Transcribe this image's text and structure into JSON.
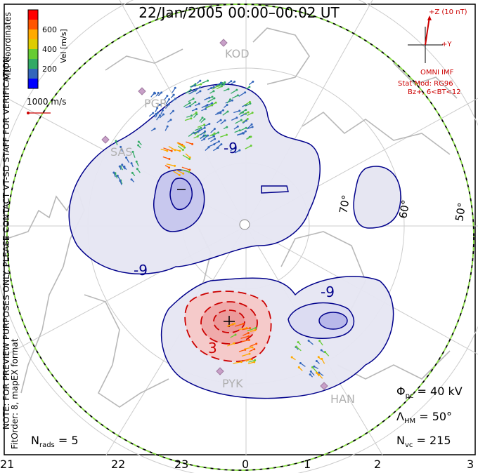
{
  "title": "22/Jan/2005 00:00–00:02 UT",
  "colorbar": {
    "axis_label": "Vel [m/s]",
    "tick_labels": [
      "600",
      "400",
      "200"
    ],
    "colors": [
      "#ff0000",
      "#ff5500",
      "#ffaa00",
      "#ddcc00",
      "#66cc33",
      "#33aa66",
      "#3366bb",
      "#0000ff"
    ]
  },
  "coordinate_note": "MLT coordinates",
  "velocity_scale_label": "1000 m/s",
  "mlt_labels": [
    "21",
    "22",
    "23",
    "0",
    "1",
    "2",
    "3"
  ],
  "latitude_labels": [
    "70°",
    "60°",
    "50°"
  ],
  "radar_sites": [
    "KOD",
    "PGR",
    "SAS",
    "PYK",
    "HAN"
  ],
  "contour_labels": [
    "-9",
    "-9",
    "-9",
    "3"
  ],
  "imf": {
    "z_label": "+Z (10 nT)",
    "y_label": "+Y",
    "source": "OMNI IMF",
    "model_line1": "Stat Mod: RG96",
    "model_line2": "Bz+, 6<BT<12"
  },
  "stats": {
    "phi_sym": "Φ",
    "phi_sub": "pc",
    "phi_value": " = 40 kV",
    "lambda_sym": "Λ",
    "lambda_sub": "HM",
    "lambda_value": " = 50°",
    "nvc_sym": "N",
    "nvc_sub": "vc",
    "nvc_value": " = 215",
    "nrads_sym": "N",
    "nrads_sub": "rads",
    "nrads_value": " = 5"
  },
  "side_note_line1": "NOTE: FOR PREVIEW PURPOSES ONLY. PLEASE CONTACT VT-SD STAFF FOR VERIFICATION.",
  "side_note_line2": "FitOrder: 8, mapEX format"
}
